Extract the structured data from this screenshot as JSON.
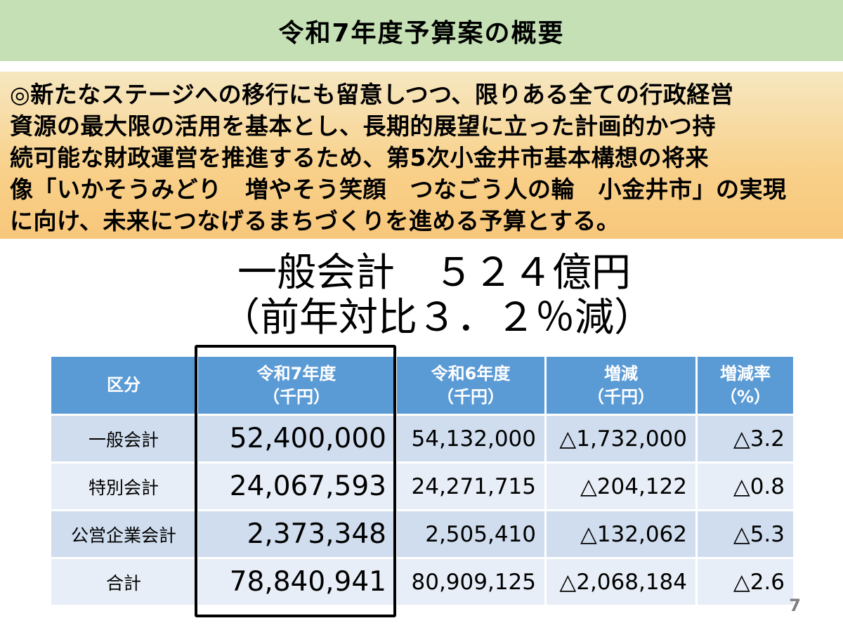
{
  "title": "令和7年度予算案の概要",
  "summary_lines": [
    "◎新たなステージへの移行にも留意しつつ、限りある全ての行政経営",
    "資源の最大限の活用を基本とし、長期的展望に立った計画的かつ持",
    "続可能な財政運営を推進するため、第5次小金井市基本構想の将来",
    "像「いかそうみどり　増やそう笑顔　つなごう人の輪　小金井市」の実現",
    "に向け、未来につなげるまちづくりを進める予算とする。"
  ],
  "headline": {
    "line1": "一般会計　５２４億円",
    "line2": "（前年対比３．２％減）"
  },
  "table": {
    "headers": [
      {
        "line1": "区分",
        "line2": ""
      },
      {
        "line1": "令和7年度",
        "line2": "（千円）"
      },
      {
        "line1": "令和6年度",
        "line2": "（千円）"
      },
      {
        "line1": "増減",
        "line2": "（千円）"
      },
      {
        "line1": "増減率",
        "line2": "（%）"
      }
    ],
    "rows": [
      {
        "category": "一般会計",
        "r7": "52,400,000",
        "r6": "54,132,000",
        "change": "△1,732,000",
        "rate": "△3.2"
      },
      {
        "category": "特別会計",
        "r7": "24,067,593",
        "r6": "24,271,715",
        "change": "△204,122",
        "rate": "△0.8"
      },
      {
        "category": "公営企業会計",
        "r7": "2,373,348",
        "r6": "2,505,410",
        "change": "△132,062",
        "rate": "△5.3"
      },
      {
        "category": "合計",
        "r7": "78,840,941",
        "r6": "80,909,125",
        "change": "△2,068,184",
        "rate": "△2.6"
      }
    ]
  },
  "page_number": "7",
  "colors": {
    "title_bg": "#c5e0b4",
    "summary_bg": "#f9d089",
    "header_bg": "#5b9bd5",
    "row_dark": "#cfddee",
    "row_light": "#e8eef7"
  }
}
